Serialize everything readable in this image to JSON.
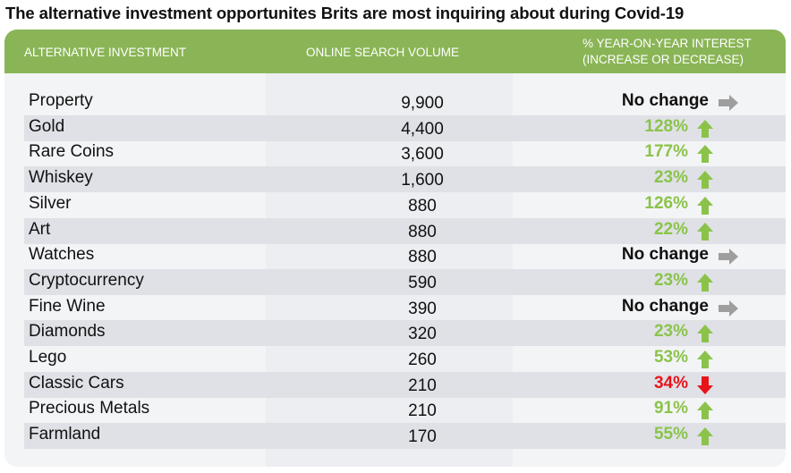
{
  "title": "The alternative investment opportunites Brits are most inquiring about during Covid-19",
  "colors": {
    "header_green": "#8ab556",
    "up_green": "#8bc34a",
    "down_red": "#e8141a",
    "flat_gray": "#9e9e9e"
  },
  "chart_data": {
    "type": "table",
    "columns": [
      "ALTERNATIVE INVESTMENT",
      "ONLINE SEARCH VOLUME",
      "% YEAR-ON-YEAR INTEREST (INCREASE OR DECREASE)"
    ],
    "rows": [
      {
        "investment": "Property",
        "volume": "9,900",
        "interest": "No change",
        "trend": "flat"
      },
      {
        "investment": "Gold",
        "volume": "4,400",
        "interest": "128%",
        "trend": "up"
      },
      {
        "investment": "Rare Coins",
        "volume": "3,600",
        "interest": "177%",
        "trend": "up"
      },
      {
        "investment": "Whiskey",
        "volume": "1,600",
        "interest": "23%",
        "trend": "up"
      },
      {
        "investment": "Silver",
        "volume": "880",
        "interest": "126%",
        "trend": "up"
      },
      {
        "investment": "Art",
        "volume": "880",
        "interest": "22%",
        "trend": "up"
      },
      {
        "investment": "Watches",
        "volume": "880",
        "interest": "No change",
        "trend": "flat"
      },
      {
        "investment": "Cryptocurrency",
        "volume": "590",
        "interest": "23%",
        "trend": "up"
      },
      {
        "investment": "Fine Wine",
        "volume": "390",
        "interest": "No change",
        "trend": "flat"
      },
      {
        "investment": "Diamonds",
        "volume": "320",
        "interest": "23%",
        "trend": "up"
      },
      {
        "investment": "Lego",
        "volume": "260",
        "interest": "53%",
        "trend": "up"
      },
      {
        "investment": "Classic Cars",
        "volume": "210",
        "interest": "34%",
        "trend": "down"
      },
      {
        "investment": "Precious Metals",
        "volume": "210",
        "interest": "91%",
        "trend": "up"
      },
      {
        "investment": "Farmland",
        "volume": "170",
        "interest": "55%",
        "trend": "up"
      }
    ]
  },
  "header": {
    "col1": "ALTERNATIVE INVESTMENT",
    "col2": "ONLINE SEARCH VOLUME",
    "col3_line1": "% YEAR-ON-YEAR INTEREST",
    "col3_line2": "(INCREASE OR DECREASE)"
  }
}
